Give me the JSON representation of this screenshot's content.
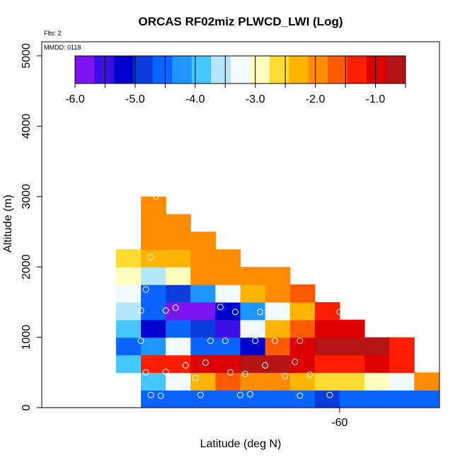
{
  "chart_data": {
    "type": "heatmap",
    "title": "ORCAS RF02miz PLWCD_LWI (Log)",
    "xlabel": "Latitude (deg N)",
    "ylabel": "Altitude (m)",
    "flights_label": "Flts: 2",
    "date_label": "MMDD: 0118",
    "x_tick_labels": [
      "-60"
    ],
    "y_ticks": [
      0,
      1000,
      2000,
      3000,
      4000,
      5000
    ],
    "ylim": [
      0,
      5200
    ],
    "colorbar": {
      "range": [
        -6.0,
        -0.5
      ],
      "tick_values": [
        -6.0,
        -5.0,
        -4.0,
        -3.0,
        -2.0,
        -1.0
      ],
      "tick_labels": [
        "-6.0",
        "-5.0",
        "-4.0",
        "-3.0",
        "-2.0",
        "-1.0"
      ],
      "colors": [
        "#7c14f0",
        "#3c0ee8",
        "#0000cc",
        "#0a3cdc",
        "#0a64ff",
        "#1e96ff",
        "#46c8ff",
        "#b4e6ff",
        "#f0faff",
        "#ffffbe",
        "#ffdc32",
        "#ffb400",
        "#ff8c00",
        "#ff5a00",
        "#ff1e00",
        "#dc0000",
        "#b41414"
      ]
    },
    "grid": {
      "col_unit": 0.5,
      "row_unit_m": 250,
      "cells": [
        {
          "c": 1,
          "r": 0,
          "v": -4.7
        },
        {
          "c": 2,
          "r": 0,
          "v": -4.7
        },
        {
          "c": 3,
          "r": 0,
          "v": -4.7
        },
        {
          "c": 4,
          "r": 0,
          "v": -4.7
        },
        {
          "c": 5,
          "r": 0,
          "v": -4.7
        },
        {
          "c": 6,
          "r": 0,
          "v": -4.7
        },
        {
          "c": 7,
          "r": 0,
          "v": -4.7
        },
        {
          "c": 8,
          "r": 0,
          "v": -4.8
        },
        {
          "c": 9,
          "r": 0,
          "v": -4.7
        },
        {
          "c": 10,
          "r": 0,
          "v": -4.7
        },
        {
          "c": 11,
          "r": 0,
          "v": -4.7
        },
        {
          "c": 12,
          "r": 0,
          "v": -4.7
        },
        {
          "c": 1,
          "r": 1,
          "v": -3.9
        },
        {
          "c": 2,
          "r": 1,
          "v": -3.3
        },
        {
          "c": 3,
          "r": 1,
          "v": -2.3
        },
        {
          "c": 4,
          "r": 1,
          "v": -1.7
        },
        {
          "c": 5,
          "r": 1,
          "v": -1.8
        },
        {
          "c": 6,
          "r": 1,
          "v": -2.0
        },
        {
          "c": 7,
          "r": 1,
          "v": -2.3
        },
        {
          "c": 8,
          "r": 1,
          "v": -2.5
        },
        {
          "c": 9,
          "r": 1,
          "v": -2.7
        },
        {
          "c": 10,
          "r": 1,
          "v": -3.0
        },
        {
          "c": 11,
          "r": 1,
          "v": -3.2
        },
        {
          "c": 12,
          "r": 1,
          "v": -2.0
        },
        {
          "c": 0,
          "r": 2,
          "v": -3.9
        },
        {
          "c": 1,
          "r": 2,
          "v": -1.2
        },
        {
          "c": 2,
          "r": 2,
          "v": -1.2
        },
        {
          "c": 3,
          "r": 2,
          "v": -1.1
        },
        {
          "c": 4,
          "r": 2,
          "v": -1.0
        },
        {
          "c": 5,
          "r": 2,
          "v": -0.8
        },
        {
          "c": 6,
          "r": 2,
          "v": -0.8
        },
        {
          "c": 7,
          "r": 2,
          "v": -1.0
        },
        {
          "c": 8,
          "r": 2,
          "v": -1.2
        },
        {
          "c": 9,
          "r": 2,
          "v": -1.2
        },
        {
          "c": 10,
          "r": 2,
          "v": -1.0
        },
        {
          "c": 11,
          "r": 2,
          "v": -1.3
        },
        {
          "c": 0,
          "r": 3,
          "v": -4.4
        },
        {
          "c": 1,
          "r": 3,
          "v": -4.3
        },
        {
          "c": 2,
          "r": 3,
          "v": -3.2
        },
        {
          "c": 3,
          "r": 3,
          "v": -4.4
        },
        {
          "c": 4,
          "r": 3,
          "v": -4.5
        },
        {
          "c": 5,
          "r": 3,
          "v": -5.3
        },
        {
          "c": 6,
          "r": 3,
          "v": -1.6
        },
        {
          "c": 7,
          "r": 3,
          "v": -1.0
        },
        {
          "c": 8,
          "r": 3,
          "v": -0.7
        },
        {
          "c": 9,
          "r": 3,
          "v": -0.7
        },
        {
          "c": 10,
          "r": 3,
          "v": -0.7
        },
        {
          "c": 11,
          "r": 3,
          "v": -1.2
        },
        {
          "c": 0,
          "r": 4,
          "v": -4.0
        },
        {
          "c": 1,
          "r": 4,
          "v": -5.3
        },
        {
          "c": 2,
          "r": 4,
          "v": -4.5
        },
        {
          "c": 3,
          "r": 4,
          "v": -4.9
        },
        {
          "c": 4,
          "r": 4,
          "v": -5.5
        },
        {
          "c": 5,
          "r": 4,
          "v": -3.3
        },
        {
          "c": 6,
          "r": 4,
          "v": -2.4
        },
        {
          "c": 7,
          "r": 4,
          "v": -1.5
        },
        {
          "c": 8,
          "r": 4,
          "v": -1.1
        },
        {
          "c": 9,
          "r": 4,
          "v": -1.1
        },
        {
          "c": 0,
          "r": 5,
          "v": -3.7
        },
        {
          "c": 1,
          "r": 5,
          "v": -4.6
        },
        {
          "c": 2,
          "r": 5,
          "v": -5.8
        },
        {
          "c": 3,
          "r": 5,
          "v": -5.8
        },
        {
          "c": 4,
          "r": 5,
          "v": -5.1
        },
        {
          "c": 5,
          "r": 5,
          "v": -4.1
        },
        {
          "c": 6,
          "r": 5,
          "v": -3.3
        },
        {
          "c": 7,
          "r": 5,
          "v": -2.3
        },
        {
          "c": 8,
          "r": 5,
          "v": -1.4
        },
        {
          "c": 0,
          "r": 6,
          "v": -3.3
        },
        {
          "c": 1,
          "r": 6,
          "v": -4.5
        },
        {
          "c": 2,
          "r": 6,
          "v": -4.8
        },
        {
          "c": 3,
          "r": 6,
          "v": -4.2
        },
        {
          "c": 4,
          "r": 6,
          "v": -3.1
        },
        {
          "c": 5,
          "r": 6,
          "v": -2.2
        },
        {
          "c": 6,
          "r": 6,
          "v": -1.8
        },
        {
          "c": 7,
          "r": 6,
          "v": -1.7
        },
        {
          "c": 0,
          "r": 7,
          "v": -2.8
        },
        {
          "c": 1,
          "r": 7,
          "v": -3.6
        },
        {
          "c": 2,
          "r": 7,
          "v": -2.8
        },
        {
          "c": 3,
          "r": 7,
          "v": -2.1
        },
        {
          "c": 4,
          "r": 7,
          "v": -2.0
        },
        {
          "c": 5,
          "r": 7,
          "v": -1.9
        },
        {
          "c": 6,
          "r": 7,
          "v": -1.9
        },
        {
          "c": 0,
          "r": 8,
          "v": -2.5
        },
        {
          "c": 1,
          "r": 8,
          "v": -2.3
        },
        {
          "c": 2,
          "r": 8,
          "v": -2.2
        },
        {
          "c": 3,
          "r": 8,
          "v": -2.1
        },
        {
          "c": 4,
          "r": 8,
          "v": -1.9
        },
        {
          "c": 1,
          "r": 9,
          "v": -2.1
        },
        {
          "c": 2,
          "r": 9,
          "v": -2.1
        },
        {
          "c": 3,
          "r": 9,
          "v": -2.0
        },
        {
          "c": 1,
          "r": 10,
          "v": -2.1
        },
        {
          "c": 2,
          "r": 10,
          "v": -2.1
        },
        {
          "c": 1,
          "r": 11,
          "v": -2.1
        }
      ]
    },
    "markers": [
      {
        "lat": -63.8,
        "alt": 180
      },
      {
        "lat": -63.6,
        "alt": 170
      },
      {
        "lat": -62.8,
        "alt": 180
      },
      {
        "lat": -62.0,
        "alt": 180
      },
      {
        "lat": -61.8,
        "alt": 190
      },
      {
        "lat": -60.8,
        "alt": 170
      },
      {
        "lat": -60.2,
        "alt": 180
      },
      {
        "lat": -63.9,
        "alt": 500
      },
      {
        "lat": -63.5,
        "alt": 510
      },
      {
        "lat": -63.1,
        "alt": 600
      },
      {
        "lat": -62.9,
        "alt": 420
      },
      {
        "lat": -62.7,
        "alt": 640
      },
      {
        "lat": -62.2,
        "alt": 500
      },
      {
        "lat": -61.9,
        "alt": 480
      },
      {
        "lat": -61.5,
        "alt": 600
      },
      {
        "lat": -61.1,
        "alt": 450
      },
      {
        "lat": -60.9,
        "alt": 650
      },
      {
        "lat": -60.6,
        "alt": 470
      },
      {
        "lat": -64.0,
        "alt": 950
      },
      {
        "lat": -63.4,
        "alt": 950
      },
      {
        "lat": -63.2,
        "alt": 950
      },
      {
        "lat": -62.6,
        "alt": 950
      },
      {
        "lat": -62.3,
        "alt": 950
      },
      {
        "lat": -61.7,
        "alt": 950
      },
      {
        "lat": -61.3,
        "alt": 950
      },
      {
        "lat": -60.8,
        "alt": 950
      },
      {
        "lat": -64.0,
        "alt": 1380
      },
      {
        "lat": -63.9,
        "alt": 1680
      },
      {
        "lat": -63.8,
        "alt": 2140
      },
      {
        "lat": -63.5,
        "alt": 1380
      },
      {
        "lat": -63.3,
        "alt": 1420
      },
      {
        "lat": -62.4,
        "alt": 1430
      },
      {
        "lat": -62.1,
        "alt": 1360
      },
      {
        "lat": -61.6,
        "alt": 1360
      },
      {
        "lat": -60.0,
        "alt": 1360
      },
      {
        "lat": -63.7,
        "alt": 3000
      }
    ]
  }
}
